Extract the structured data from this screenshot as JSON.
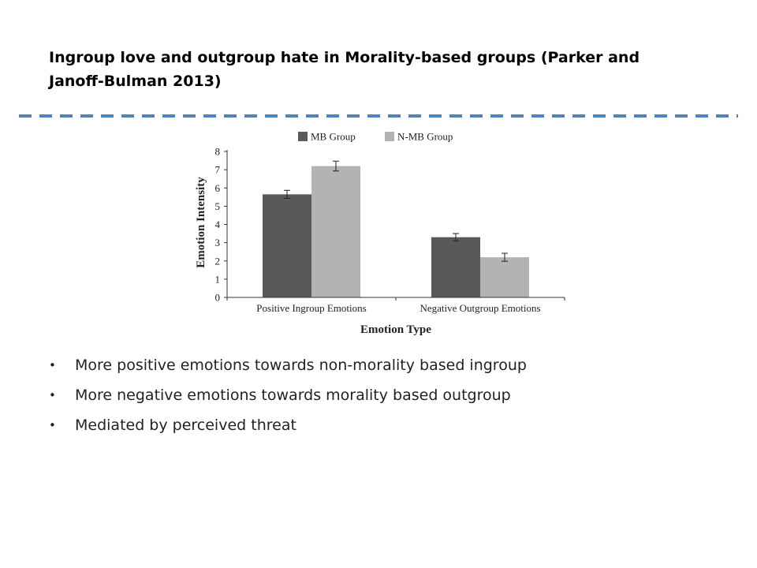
{
  "slide": {
    "title": "Ingroup love and outgroup hate in Morality-based groups (Parker and Janoff-Bulman 2013)",
    "divider_color": "#4f81bd"
  },
  "bullets": [
    "More positive emotions towards non-morality based ingroup",
    "More negative emotions towards morality based outgroup",
    "Mediated by perceived threat"
  ],
  "chart_data": {
    "type": "bar",
    "title": "",
    "xlabel": "Emotion Type",
    "ylabel": "Emotion Intensity",
    "categories": [
      "Positive Ingroup Emotions",
      "Negative Outgroup Emotions"
    ],
    "series": [
      {
        "name": "MB Group",
        "values": [
          5.65,
          3.3
        ],
        "errors": [
          0.22,
          0.2
        ],
        "color": "#595959"
      },
      {
        "name": "N-MB Group",
        "values": [
          7.2,
          2.2
        ],
        "errors": [
          0.27,
          0.22
        ],
        "color": "#b3b3b3"
      }
    ],
    "ylim": [
      0,
      8
    ],
    "yticks": [
      0,
      1,
      2,
      3,
      4,
      5,
      6,
      7,
      8
    ],
    "grid": false,
    "legend_position": "top"
  }
}
